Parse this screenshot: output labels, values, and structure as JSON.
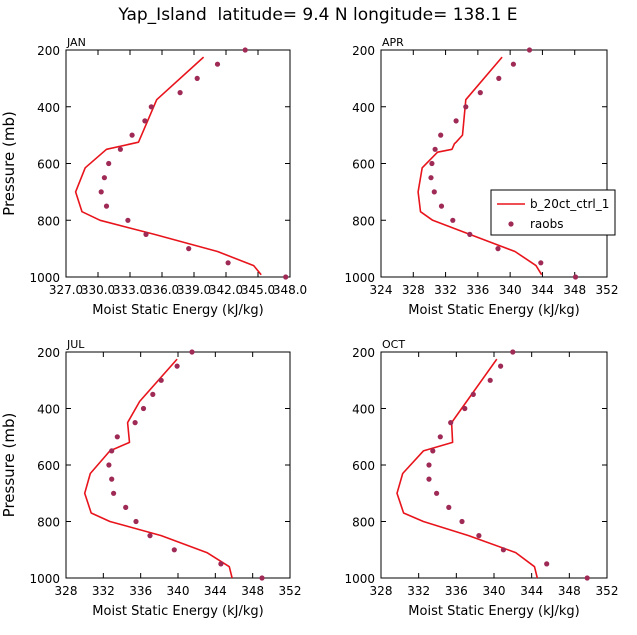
{
  "title": "Yap_Island  latitude= 9.4 N longitude= 138.1 E",
  "colors": {
    "model": "#e8141c",
    "obs": "#9e2a55",
    "axis": "#000000"
  },
  "legend": {
    "model_label": "b_20ct_ctrl_1",
    "obs_label": "raobs"
  },
  "chart_data": [
    {
      "type": "line",
      "panel_label": "JAN",
      "xlabel": "Moist Static Energy (kJ/kg)",
      "ylabel": "Pressure (mb)",
      "xlim": [
        327.0,
        348.0
      ],
      "ylim": [
        1000,
        200
      ],
      "xticks": [
        327.0,
        330.0,
        333.0,
        336.0,
        339.0,
        342.0,
        345.0,
        348.0
      ],
      "xtick_labels": [
        "327.0",
        "330.0",
        "333.0",
        "336.0",
        "339.0",
        "342.0",
        "345.0",
        "348.0"
      ],
      "yticks": [
        200,
        400,
        600,
        800,
        1000
      ],
      "series": [
        {
          "name": "b_20ct_ctrl_1",
          "kind": "line",
          "x": [
            345.3,
            344.6,
            341.2,
            335.3,
            330.2,
            328.5,
            327.9,
            328.8,
            330.8,
            333.8,
            335.5,
            339.9
          ],
          "y": [
            992,
            960,
            910,
            850,
            800,
            770,
            700,
            615,
            550,
            525,
            375,
            225
          ]
        },
        {
          "name": "raobs",
          "kind": "scatter",
          "x": [
            347.6,
            342.2,
            338.5,
            334.5,
            332.8,
            330.8,
            330.3,
            330.6,
            331.0,
            332.1,
            333.2,
            334.4,
            335.0,
            337.7,
            339.3,
            341.2,
            343.8
          ],
          "y": [
            1000,
            950,
            900,
            850,
            800,
            750,
            700,
            650,
            600,
            550,
            500,
            450,
            400,
            350,
            300,
            250,
            200
          ]
        }
      ]
    },
    {
      "type": "line",
      "panel_label": "APR",
      "xlabel": "Moist Static Energy (kJ/kg)",
      "ylabel": "",
      "xlim": [
        324,
        352
      ],
      "ylim": [
        1000,
        200
      ],
      "xticks": [
        324,
        328,
        332,
        336,
        340,
        344,
        348,
        352
      ],
      "xtick_labels": [
        "324",
        "328",
        "332",
        "336",
        "340",
        "344",
        "348",
        "352"
      ],
      "yticks": [
        200,
        400,
        600,
        800,
        1000
      ],
      "series": [
        {
          "name": "b_20ct_ctrl_1",
          "kind": "line",
          "x": [
            343.9,
            343.2,
            340.6,
            335.0,
            330.4,
            328.9,
            328.6,
            329.1,
            331.0,
            332.8,
            333.1,
            333.3,
            334.1,
            334.5,
            339.0
          ],
          "y": [
            992,
            960,
            910,
            850,
            800,
            770,
            700,
            615,
            560,
            550,
            530,
            525,
            500,
            375,
            225
          ]
        },
        {
          "name": "raobs",
          "kind": "scatter",
          "x": [
            348.1,
            343.8,
            338.5,
            335.0,
            332.9,
            331.5,
            330.6,
            330.2,
            330.3,
            330.7,
            331.4,
            333.3,
            334.5,
            336.3,
            338.6,
            340.4,
            342.4
          ],
          "y": [
            1000,
            950,
            900,
            850,
            800,
            750,
            700,
            650,
            600,
            550,
            500,
            450,
            400,
            350,
            300,
            250,
            200
          ]
        }
      ]
    },
    {
      "type": "line",
      "panel_label": "JUL",
      "xlabel": "Moist Static Energy (kJ/kg)",
      "ylabel": "Pressure (mb)",
      "xlim": [
        328,
        352
      ],
      "ylim": [
        1000,
        200
      ],
      "xticks": [
        328,
        332,
        336,
        340,
        344,
        348,
        352
      ],
      "xtick_labels": [
        "328",
        "332",
        "336",
        "340",
        "344",
        "348",
        "352"
      ],
      "yticks": [
        200,
        400,
        600,
        800,
        1000
      ],
      "series": [
        {
          "name": "b_20ct_ctrl_1",
          "kind": "line",
          "x": [
            345.8,
            345.5,
            343.1,
            338.2,
            332.7,
            330.7,
            330.0,
            330.6,
            332.7,
            334.8,
            334.6,
            335.9,
            339.9
          ],
          "y": [
            1000,
            960,
            910,
            850,
            800,
            770,
            700,
            630,
            550,
            520,
            450,
            375,
            225
          ]
        },
        {
          "name": "raobs",
          "kind": "scatter",
          "x": [
            349.0,
            344.6,
            339.6,
            337.0,
            335.5,
            334.4,
            333.1,
            332.9,
            332.6,
            332.9,
            333.5,
            335.4,
            336.3,
            337.3,
            338.2,
            339.9,
            341.5
          ],
          "y": [
            1000,
            950,
            900,
            850,
            800,
            750,
            700,
            650,
            600,
            550,
            500,
            450,
            400,
            350,
            300,
            250,
            200
          ]
        }
      ]
    },
    {
      "type": "line",
      "panel_label": "OCT",
      "xlabel": "Moist Static Energy (kJ/kg)",
      "ylabel": "",
      "xlim": [
        328,
        352
      ],
      "ylim": [
        1000,
        200
      ],
      "xticks": [
        328,
        332,
        336,
        340,
        344,
        348,
        352
      ],
      "xtick_labels": [
        "328",
        "332",
        "336",
        "340",
        "344",
        "348",
        "352"
      ],
      "yticks": [
        200,
        400,
        600,
        800,
        1000
      ],
      "series": [
        {
          "name": "b_20ct_ctrl_1",
          "kind": "line",
          "x": [
            344.6,
            344.3,
            342.3,
            337.3,
            332.5,
            330.4,
            329.7,
            330.3,
            332.5,
            335.6,
            335.5,
            337.1,
            340.3
          ],
          "y": [
            1000,
            960,
            910,
            850,
            800,
            770,
            700,
            630,
            550,
            520,
            450,
            375,
            225
          ]
        },
        {
          "name": "raobs",
          "kind": "scatter",
          "x": [
            349.9,
            345.6,
            341.0,
            338.4,
            336.6,
            335.2,
            333.9,
            333.1,
            333.1,
            333.5,
            334.3,
            335.4,
            336.9,
            337.8,
            339.6,
            340.7,
            342.0
          ],
          "y": [
            1000,
            950,
            900,
            850,
            800,
            750,
            700,
            650,
            600,
            550,
            500,
            450,
            400,
            350,
            300,
            250,
            200
          ]
        }
      ]
    }
  ]
}
